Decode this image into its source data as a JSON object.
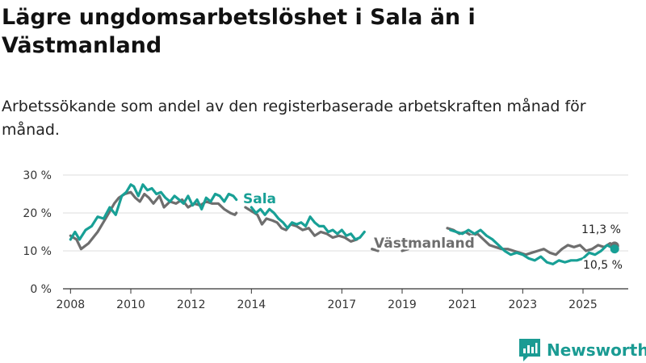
{
  "header": {
    "title": "Lägre ungdomsarbetslöshet i Sala än i Västmanland",
    "subtitle": "Arbetssökande som andel av den registerbaserade arbetskraften månad för månad."
  },
  "brand": {
    "name": "Newsworthy",
    "icon": "newsworthy-logo-icon"
  },
  "colors": {
    "sala": "#18a096",
    "vastmanland": "#6e6e6e",
    "grid": "#dddddd",
    "axis": "#333333"
  },
  "chart_data": {
    "type": "line",
    "title": "Lägre ungdomsarbetslöshet i Sala än i Västmanland",
    "xlabel": "",
    "ylabel": "",
    "xlim": [
      2007.75,
      2026.5
    ],
    "ylim": [
      0,
      30
    ],
    "y_ticks": [
      {
        "value": 0,
        "label": "0 %"
      },
      {
        "value": 10,
        "label": "10 %"
      },
      {
        "value": 20,
        "label": "20 %"
      },
      {
        "value": 30,
        "label": "30 %"
      }
    ],
    "x_ticks": [
      {
        "value": 2008,
        "label": "2008"
      },
      {
        "value": 2010,
        "label": "2010"
      },
      {
        "value": 2012,
        "label": "2012"
      },
      {
        "value": 2014,
        "label": "2014"
      },
      {
        "value": 2017,
        "label": "2017"
      },
      {
        "value": 2019,
        "label": "2019"
      },
      {
        "value": 2021,
        "label": "2021"
      },
      {
        "value": 2023,
        "label": "2023"
      },
      {
        "value": 2025,
        "label": "2025"
      }
    ],
    "grid": true,
    "series": [
      {
        "name": "Västmanland",
        "label": "Västmanland",
        "end_label": "11,3 %",
        "segments": [
          {
            "x": [
              2008.0,
              2008.2,
              2008.35,
              2008.6,
              2008.9,
              2009.2,
              2009.45,
              2009.6,
              2009.8,
              2010.0,
              2010.15,
              2010.3,
              2010.45,
              2010.6,
              2010.75,
              2010.95,
              2011.1,
              2011.3,
              2011.5,
              2011.7,
              2011.9,
              2012.1,
              2012.3,
              2012.5,
              2012.7,
              2012.9,
              2013.1,
              2013.3,
              2013.45,
              2013.5
            ],
            "y": [
              14.0,
              13.0,
              10.5,
              12.0,
              15.0,
              19.0,
              22.5,
              24.0,
              25.0,
              25.5,
              24.0,
              23.0,
              25.0,
              24.0,
              22.5,
              24.5,
              21.5,
              23.0,
              22.5,
              23.5,
              21.5,
              22.5,
              22.0,
              23.0,
              22.5,
              22.5,
              21.0,
              20.0,
              19.5,
              20.0
            ]
          },
          {
            "x": [
              2013.8,
              2014.0,
              2014.2,
              2014.35,
              2014.5,
              2014.7,
              2014.85,
              2015.0,
              2015.15,
              2015.3,
              2015.5,
              2015.7,
              2015.9,
              2016.1,
              2016.3,
              2016.5,
              2016.7,
              2016.9,
              2017.1,
              2017.3,
              2017.5
            ],
            "y": [
              21.5,
              20.5,
              19.5,
              17.0,
              18.5,
              18.0,
              17.5,
              16.0,
              15.5,
              17.0,
              16.5,
              15.5,
              16.0,
              14.0,
              15.0,
              14.5,
              13.5,
              14.0,
              13.5,
              12.5,
              13.0
            ]
          },
          {
            "x": [
              2018.0,
              2018.2
            ],
            "y": [
              10.5,
              10.0
            ]
          },
          {
            "x": [
              2019.0,
              2019.2
            ],
            "y": [
              10.0,
              10.5
            ]
          },
          {
            "x": [
              2020.5,
              2020.7,
              2020.9,
              2021.1,
              2021.3,
              2021.5,
              2021.7,
              2021.9,
              2022.1,
              2022.3,
              2022.5,
              2022.7,
              2022.9,
              2023.1,
              2023.3,
              2023.5,
              2023.7,
              2023.9,
              2024.1,
              2024.3,
              2024.5,
              2024.7,
              2024.9,
              2025.1,
              2025.3,
              2025.5,
              2025.7,
              2025.9,
              2026.05
            ],
            "y": [
              16.0,
              15.5,
              14.5,
              15.0,
              14.0,
              14.5,
              13.0,
              11.5,
              11.0,
              10.5,
              10.5,
              10.0,
              9.5,
              9.0,
              9.5,
              10.0,
              10.5,
              9.5,
              9.0,
              10.5,
              11.5,
              11.0,
              11.5,
              10.0,
              10.5,
              11.5,
              11.0,
              12.0,
              11.3
            ]
          }
        ]
      },
      {
        "name": "Sala",
        "label": "Sala",
        "end_label": "10,5 %",
        "segments": [
          {
            "x": [
              2008.0,
              2008.15,
              2008.3,
              2008.5,
              2008.7,
              2008.9,
              2009.1,
              2009.3,
              2009.5,
              2009.7,
              2009.85,
              2010.0,
              2010.1,
              2010.25,
              2010.4,
              2010.55,
              2010.7,
              2010.85,
              2011.0,
              2011.15,
              2011.3,
              2011.45,
              2011.6,
              2011.75,
              2011.9,
              2012.05,
              2012.2,
              2012.35,
              2012.5,
              2012.65,
              2012.8,
              2012.95,
              2013.1,
              2013.25,
              2013.4,
              2013.5
            ],
            "y": [
              13.0,
              15.0,
              13.0,
              15.5,
              16.5,
              19.0,
              18.5,
              21.5,
              19.5,
              24.5,
              25.5,
              27.5,
              27.0,
              24.5,
              27.5,
              26.0,
              26.5,
              25.0,
              25.5,
              24.0,
              23.0,
              24.5,
              23.5,
              22.5,
              24.5,
              22.0,
              23.5,
              21.0,
              24.0,
              23.0,
              25.0,
              24.5,
              23.0,
              25.0,
              24.5,
              23.5
            ]
          },
          {
            "x": [
              2014.0,
              2014.15,
              2014.3,
              2014.45,
              2014.6,
              2014.75,
              2014.9,
              2015.05,
              2015.2,
              2015.35,
              2015.5,
              2015.65,
              2015.8,
              2015.95,
              2016.1,
              2016.25,
              2016.4,
              2016.55,
              2016.7,
              2016.85,
              2017.0,
              2017.15,
              2017.3,
              2017.45,
              2017.6,
              2017.75
            ],
            "y": [
              21.5,
              20.0,
              21.0,
              19.5,
              21.0,
              20.0,
              18.5,
              17.5,
              16.0,
              17.5,
              17.0,
              17.5,
              16.5,
              19.0,
              17.5,
              16.5,
              16.5,
              15.0,
              15.5,
              14.5,
              15.5,
              14.0,
              14.5,
              13.0,
              13.5,
              15.0
            ]
          },
          {
            "x": [
              2020.6,
              2020.8,
              2021.0,
              2021.2,
              2021.4,
              2021.6,
              2021.8,
              2022.0,
              2022.2,
              2022.4,
              2022.6,
              2022.8,
              2023.0,
              2023.2,
              2023.4,
              2023.6,
              2023.8,
              2024.0,
              2024.2,
              2024.4,
              2024.6,
              2024.8,
              2025.0,
              2025.2,
              2025.4,
              2025.6,
              2025.8,
              2026.05
            ],
            "y": [
              15.5,
              15.0,
              14.5,
              15.5,
              14.5,
              15.5,
              14.0,
              13.0,
              11.5,
              10.0,
              9.0,
              9.5,
              9.0,
              8.0,
              7.5,
              8.5,
              7.0,
              6.5,
              7.5,
              7.0,
              7.5,
              7.5,
              8.0,
              9.5,
              9.0,
              10.0,
              11.5,
              10.5
            ]
          }
        ]
      }
    ]
  }
}
